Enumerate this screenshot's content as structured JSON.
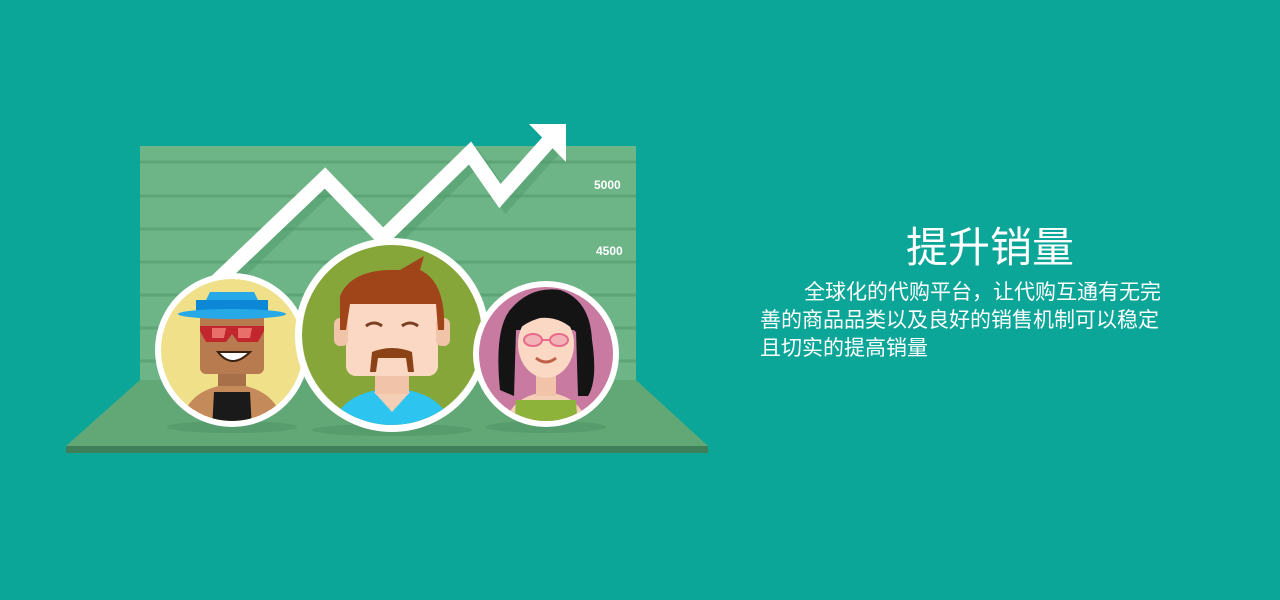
{
  "chart": {
    "tick_labels": [
      "5000",
      "4500"
    ],
    "trend": "up"
  },
  "people": [
    {
      "name": "man-with-blue-hat-and-sunglasses",
      "bg": "#f0e08a"
    },
    {
      "name": "man-with-mustache",
      "bg": "#87a63a"
    },
    {
      "name": "woman-with-curly-hair",
      "bg": "#c87aa0"
    }
  ],
  "section": {
    "title": "提升销量",
    "description_lines": [
      "全球化的代购平台，让代购互通有无完",
      "善的商品品类以及良好的销售机制可以稳定",
      "且切实的提高销量"
    ]
  },
  "colors": {
    "background": "#0ca699",
    "board": "#6db587",
    "floor": "#62a876",
    "arrow": "#ffffff"
  }
}
